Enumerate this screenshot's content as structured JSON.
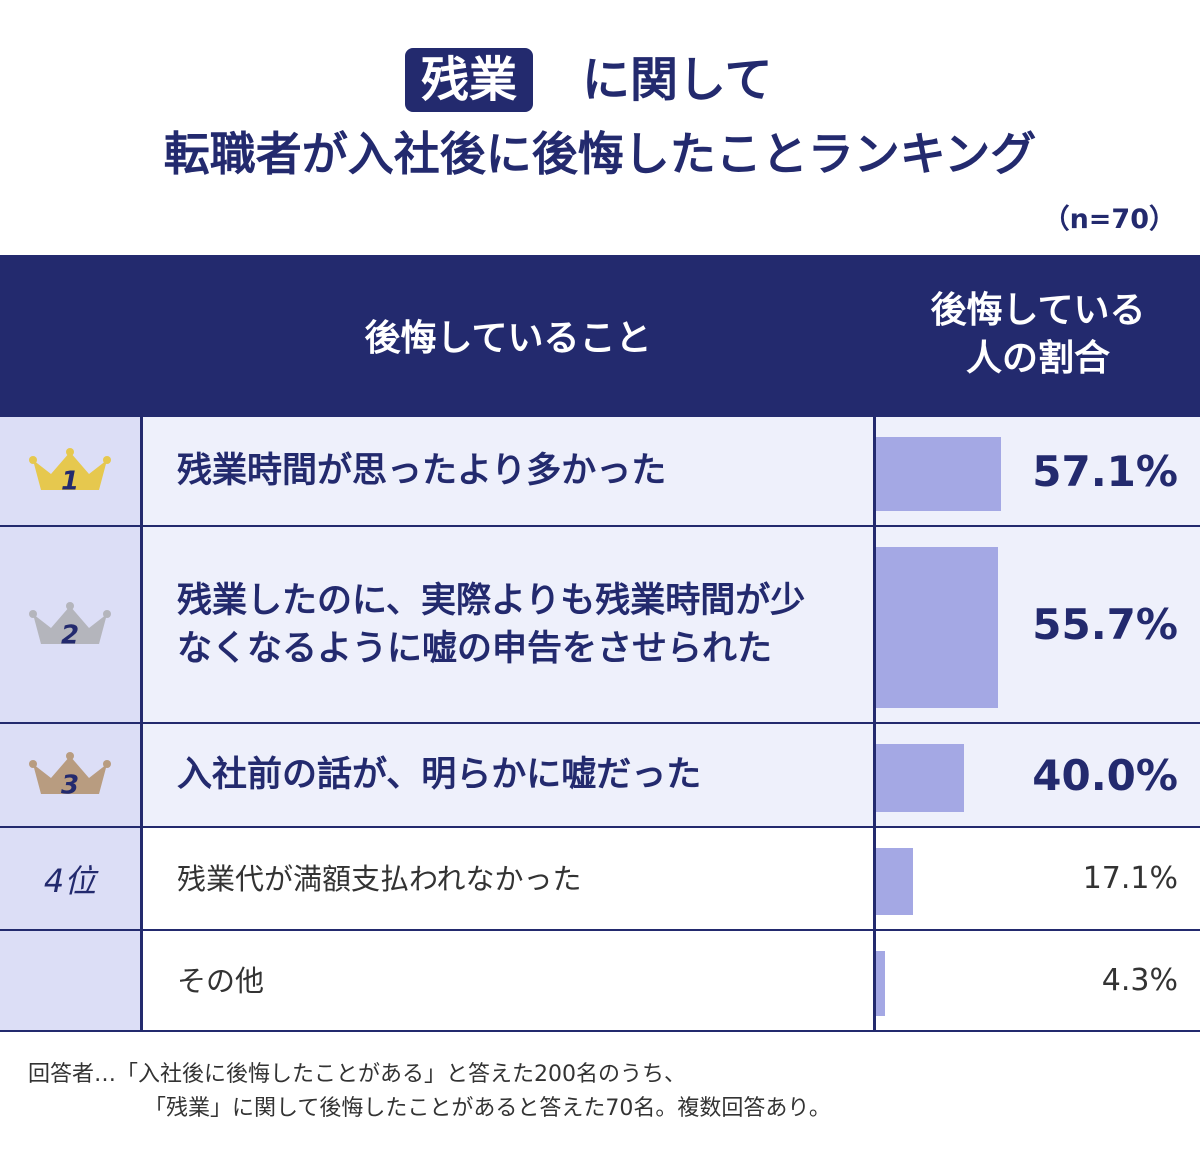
{
  "chart_data": {
    "type": "bar",
    "title_highlight": "残業",
    "title_rest": "に関して",
    "title_line2": "転職者が入社後に後悔したことランキング",
    "subtitle": "（n=70）",
    "column_headers": [
      "後悔していること",
      [
        "後悔している",
        "人の割合"
      ]
    ],
    "ranks": [
      "1",
      "2",
      "3",
      "4位",
      null
    ],
    "categories": [
      "残業時間が思ったより多かった",
      "残業したのに、実際よりも残業時間が少なくなるように嘘の申告をさせられた",
      "入社前の話が、明らかに嘘だった",
      "残業代が満額支払われなかった",
      "その他"
    ],
    "values": [
      57.1,
      55.7,
      40.0,
      17.1,
      4.3
    ],
    "value_labels": [
      "57.1%",
      "55.7%",
      "40.0%",
      "17.1%",
      "4.3%"
    ],
    "xlim": [
      0,
      100
    ],
    "color": "#a4a8e4",
    "crown_colors": [
      "#e6c84e",
      "#b4b5bc",
      "#b89c80"
    ],
    "notes": [
      "回答者…「入社後に後悔したことがある」と答えた200名のうち、",
      "「残業」に関して後悔したことがあると答えた70名。複数回答あり。"
    ]
  }
}
